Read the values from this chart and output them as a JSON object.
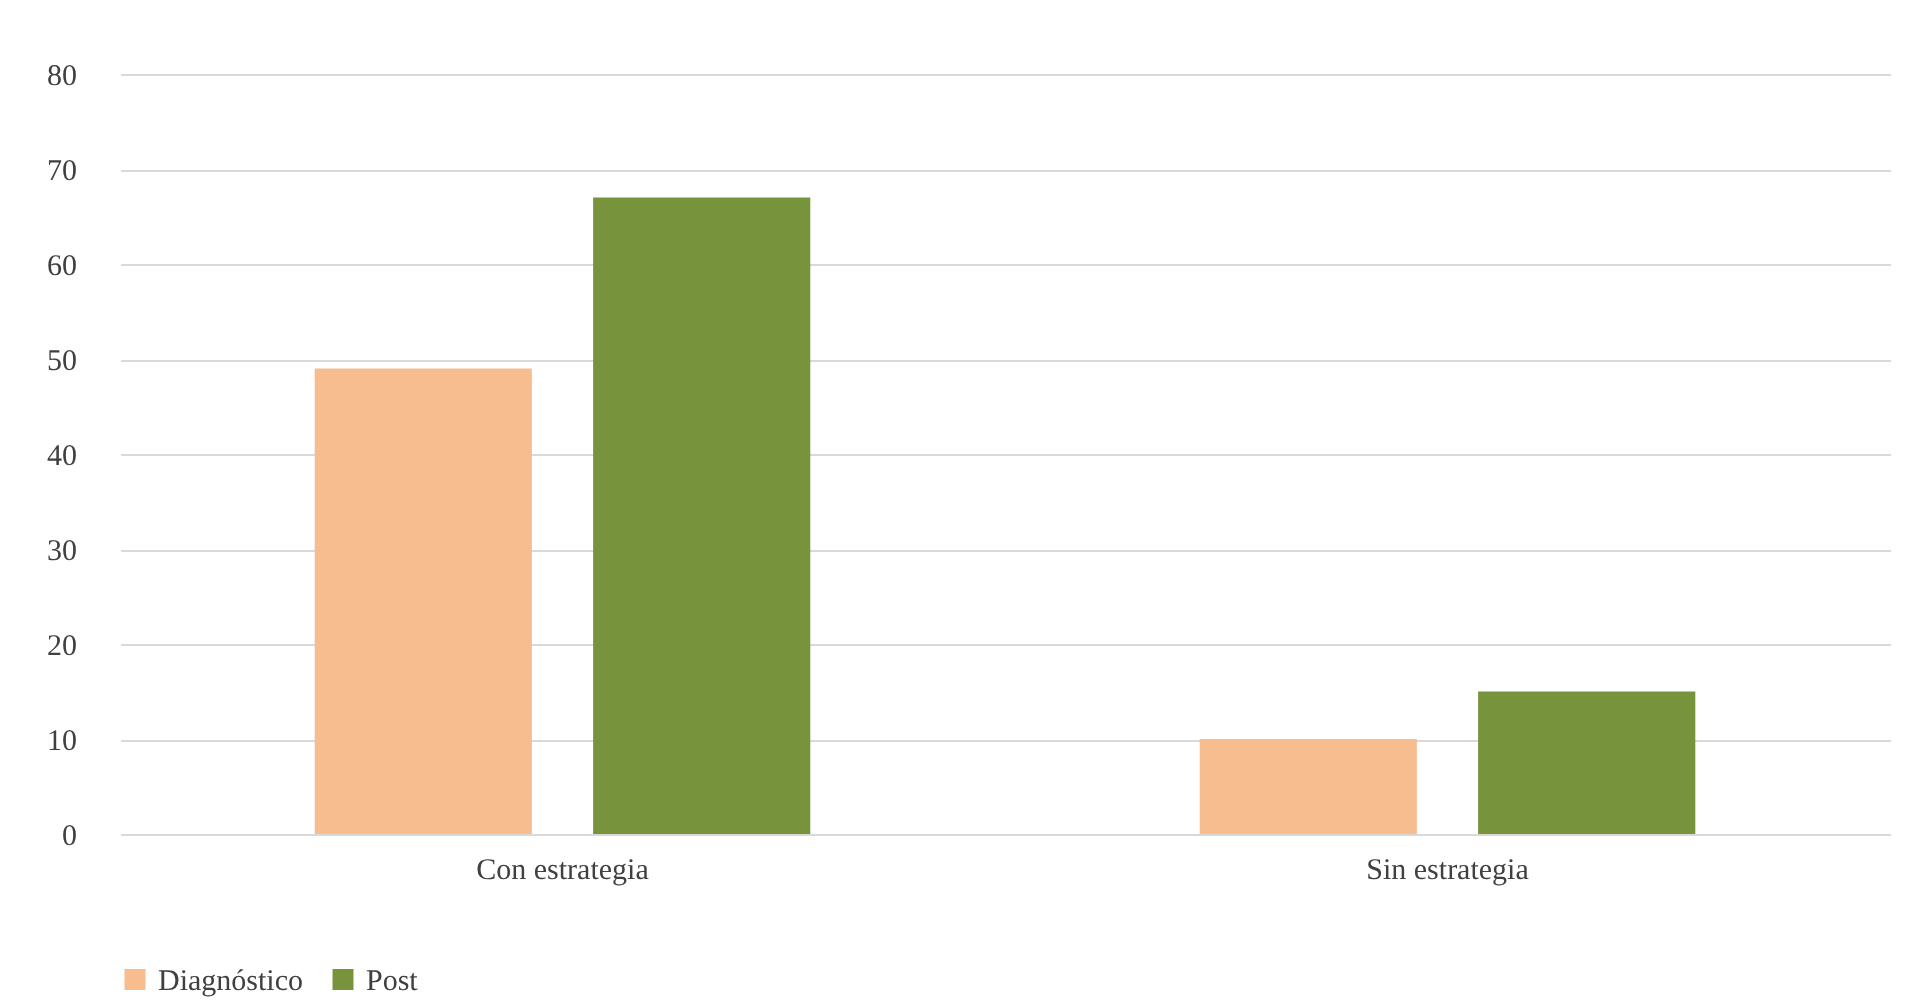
{
  "chart_data": {
    "type": "bar",
    "categories": [
      "Con estrategia",
      "Sin estrategia"
    ],
    "series": [
      {
        "name": "Diagnóstico",
        "color": "#f8bd8f",
        "values": [
          49,
          10
        ]
      },
      {
        "name": "Post",
        "color": "#77933c",
        "values": [
          67,
          15
        ]
      }
    ],
    "ylim": [
      0,
      80
    ],
    "yticks": [
      0,
      10,
      20,
      30,
      40,
      50,
      60,
      70,
      80
    ],
    "grid": "y",
    "legend": "bottom"
  }
}
